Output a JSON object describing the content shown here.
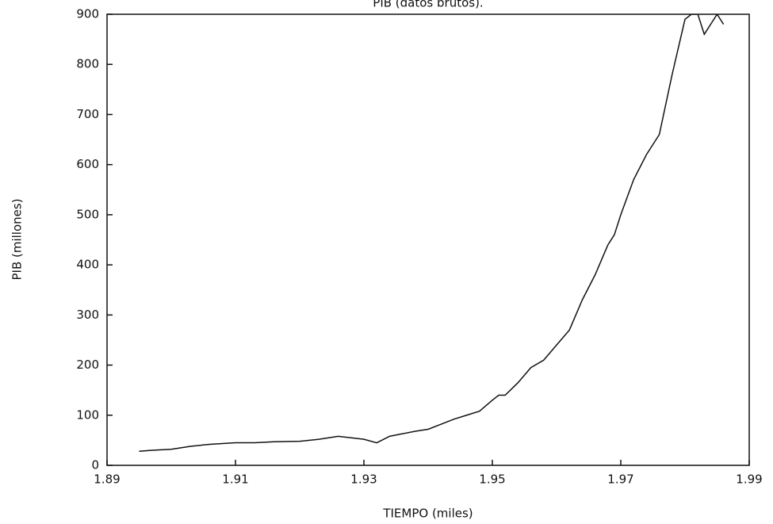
{
  "chart_data": {
    "type": "line",
    "title": "PIB (datos brutos).",
    "x_label": "TIEMPO (miles)",
    "y_label": "PIB (millones)",
    "x": [
      1.895,
      1.897,
      1.9,
      1.903,
      1.906,
      1.91,
      1.913,
      1.916,
      1.92,
      1.923,
      1.926,
      1.928,
      1.93,
      1.932,
      1.934,
      1.936,
      1.938,
      1.94,
      1.942,
      1.944,
      1.946,
      1.948,
      1.95,
      1.951,
      1.952,
      1.954,
      1.956,
      1.958,
      1.96,
      1.962,
      1.964,
      1.966,
      1.968,
      1.969,
      1.97,
      1.972,
      1.974,
      1.976,
      1.978,
      1.98,
      1.981,
      1.982,
      1.983,
      1.984,
      1.985,
      1.986
    ],
    "series": [
      {
        "name": "PIB",
        "color": "#111111",
        "values": [
          28,
          30,
          32,
          38,
          42,
          45,
          45,
          47,
          48,
          52,
          58,
          55,
          52,
          45,
          58,
          63,
          68,
          72,
          82,
          92,
          100,
          108,
          130,
          140,
          140,
          165,
          195,
          210,
          240,
          270,
          330,
          380,
          440,
          460,
          500,
          570,
          620,
          660,
          780,
          890,
          900,
          900,
          860,
          880,
          900,
          880
        ]
      }
    ],
    "xlim": [
      1.89,
      1.99
    ],
    "xticks": [
      1.89,
      1.91,
      1.93,
      1.95,
      1.97,
      1.99
    ],
    "ylim": [
      0,
      900
    ],
    "yticks": [
      0,
      100,
      200,
      300,
      400,
      500,
      600,
      700,
      800,
      900
    ],
    "grid": false
  }
}
